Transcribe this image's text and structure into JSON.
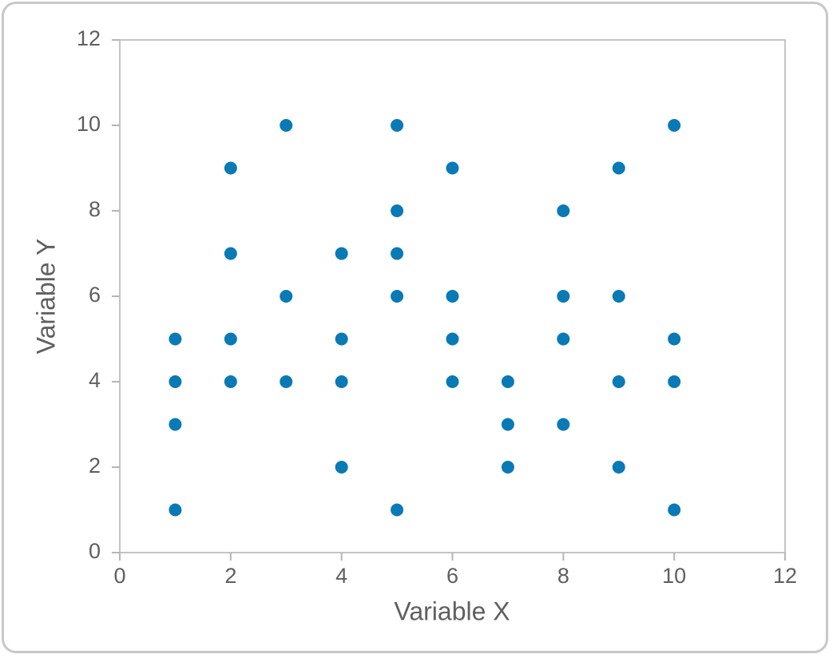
{
  "chart_data": {
    "type": "scatter",
    "x_label": "Variable X",
    "y_label": "Variable Y",
    "x": [
      1,
      1,
      1,
      1,
      2,
      2,
      2,
      2,
      3,
      3,
      3,
      4,
      4,
      4,
      4,
      5,
      5,
      5,
      5,
      5,
      6,
      6,
      6,
      6,
      7,
      7,
      7,
      8,
      8,
      8,
      8,
      9,
      9,
      9,
      9,
      10,
      10,
      10,
      10
    ],
    "values": [
      5,
      4,
      3,
      1,
      9,
      7,
      5,
      4,
      10,
      6,
      4,
      7,
      5,
      4,
      2,
      10,
      8,
      7,
      6,
      1,
      9,
      6,
      5,
      4,
      4,
      3,
      2,
      8,
      6,
      5,
      3,
      9,
      6,
      4,
      2,
      10,
      5,
      4,
      1
    ],
    "color": "#0a7ab6",
    "xlim": [
      0,
      12
    ],
    "xticks": [
      0,
      2,
      4,
      6,
      8,
      10,
      12
    ],
    "ylim": [
      0,
      12
    ],
    "yticks": [
      0,
      2,
      4,
      6,
      8,
      10,
      12
    ],
    "grid": false
  }
}
